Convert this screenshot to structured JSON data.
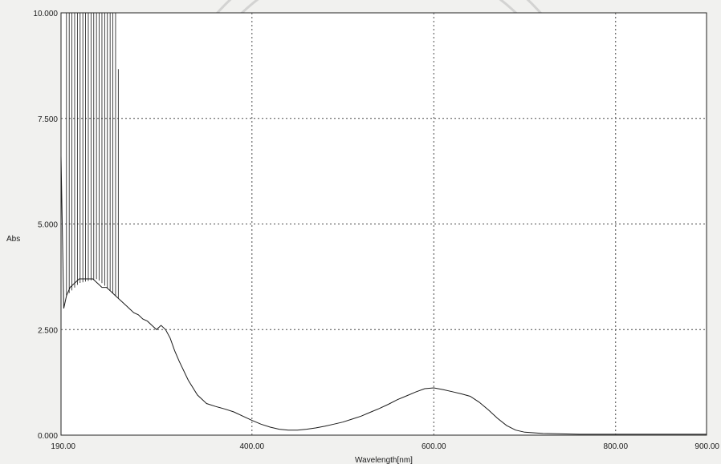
{
  "chart_data": {
    "type": "line",
    "title": "",
    "xlabel": "Wavelength[nm]",
    "ylabel": "Abs",
    "xlim": [
      190,
      900
    ],
    "ylim": [
      0,
      10
    ],
    "x_ticks": [
      {
        "value": 190,
        "label": "190.00"
      },
      {
        "value": 400,
        "label": "400.00"
      },
      {
        "value": 600,
        "label": "600.00"
      },
      {
        "value": 800,
        "label": "800.00"
      },
      {
        "value": 900,
        "label": "900.00"
      }
    ],
    "y_ticks": [
      {
        "value": 0,
        "label": "0.000"
      },
      {
        "value": 2.5,
        "label": "2.500"
      },
      {
        "value": 5,
        "label": "5.000"
      },
      {
        "value": 7.5,
        "label": "7.500"
      },
      {
        "value": 10,
        "label": "10.000"
      }
    ],
    "grid": true,
    "legend": "none",
    "noise_region": {
      "x_range": [
        196,
        255
      ],
      "upper_envelope": [
        [
          196,
          10
        ],
        [
          252,
          10
        ],
        [
          255,
          6.0
        ]
      ],
      "lower_envelope": [
        [
          196,
          3.3
        ],
        [
          210,
          3.6
        ],
        [
          230,
          3.7
        ],
        [
          255,
          3.2
        ]
      ],
      "spike_step": 3
    },
    "series": [
      {
        "name": "",
        "x": [
          190,
          193,
          196,
          200,
          205,
          210,
          215,
          220,
          225,
          230,
          235,
          240,
          245,
          250,
          255,
          260,
          265,
          270,
          275,
          280,
          285,
          290,
          295,
          300,
          305,
          310,
          315,
          320,
          330,
          340,
          350,
          360,
          370,
          380,
          390,
          400,
          410,
          420,
          430,
          440,
          450,
          460,
          470,
          480,
          490,
          500,
          510,
          520,
          530,
          540,
          550,
          560,
          570,
          580,
          590,
          600,
          610,
          620,
          630,
          640,
          650,
          660,
          670,
          680,
          690,
          700,
          720,
          740,
          760,
          780,
          800,
          820,
          840,
          860,
          880,
          900
        ],
        "values": [
          6.6,
          3.0,
          3.3,
          3.5,
          3.6,
          3.7,
          3.7,
          3.7,
          3.7,
          3.6,
          3.5,
          3.5,
          3.4,
          3.3,
          3.2,
          3.1,
          3.0,
          2.9,
          2.85,
          2.75,
          2.7,
          2.6,
          2.5,
          2.6,
          2.5,
          2.3,
          2.0,
          1.75,
          1.3,
          0.95,
          0.75,
          0.68,
          0.62,
          0.55,
          0.45,
          0.35,
          0.26,
          0.19,
          0.14,
          0.12,
          0.12,
          0.14,
          0.17,
          0.21,
          0.26,
          0.31,
          0.38,
          0.45,
          0.54,
          0.63,
          0.73,
          0.84,
          0.93,
          1.02,
          1.1,
          1.12,
          1.08,
          1.03,
          0.98,
          0.92,
          0.78,
          0.6,
          0.4,
          0.23,
          0.12,
          0.07,
          0.04,
          0.03,
          0.02,
          0.02,
          0.02,
          0.02,
          0.02,
          0.02,
          0.02,
          0.02
        ]
      }
    ]
  }
}
